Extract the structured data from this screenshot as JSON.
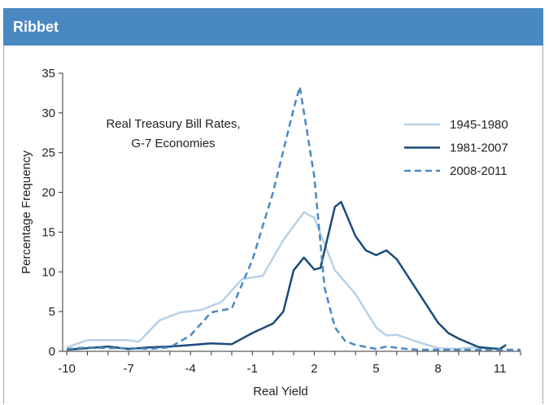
{
  "header": {
    "title": "Ribbet"
  },
  "chart_data": {
    "type": "line",
    "xlabel": "Real Yield",
    "ylabel": "Percentage Frequency",
    "annotation": [
      "Real Treasury Bill Rates,",
      "G-7 Economies"
    ],
    "xlim": [
      -10.2,
      12
    ],
    "ylim": [
      0,
      35
    ],
    "xticks": [
      -10,
      -7,
      -4,
      -1,
      2,
      5,
      8,
      11
    ],
    "yticks": [
      0,
      5,
      10,
      15,
      20,
      25,
      30,
      35
    ],
    "grid": false,
    "legend_position": "top-right",
    "series": [
      {
        "name": "1945-1980",
        "color": "#b8d0e6",
        "dash": "solid",
        "points": [
          [
            -10,
            0.5
          ],
          [
            -9,
            1.4
          ],
          [
            -8,
            1.4
          ],
          [
            -7,
            1.4
          ],
          [
            -6.5,
            1.2
          ],
          [
            -5.5,
            3.9
          ],
          [
            -4.5,
            4.9
          ],
          [
            -3.5,
            5.2
          ],
          [
            -2.5,
            6.2
          ],
          [
            -1.5,
            9.1
          ],
          [
            -0.5,
            9.5
          ],
          [
            0.5,
            14.0
          ],
          [
            1.5,
            17.5
          ],
          [
            2,
            16.8
          ],
          [
            3,
            10.2
          ],
          [
            4,
            7.2
          ],
          [
            5,
            3.0
          ],
          [
            5.5,
            2.0
          ],
          [
            6,
            2.1
          ],
          [
            7,
            1.2
          ],
          [
            8,
            0.4
          ],
          [
            9,
            0.3
          ],
          [
            10,
            0.6
          ],
          [
            10.5,
            0.4
          ]
        ]
      },
      {
        "name": "1981-2007",
        "color": "#1a4a7a",
        "dash": "solid",
        "points": [
          [
            -10,
            0.2
          ],
          [
            -9,
            0.4
          ],
          [
            -8,
            0.6
          ],
          [
            -7,
            0.3
          ],
          [
            -6,
            0.5
          ],
          [
            -5,
            0.6
          ],
          [
            -4,
            0.8
          ],
          [
            -3,
            1.0
          ],
          [
            -2,
            0.9
          ],
          [
            -1,
            2.3
          ],
          [
            0,
            3.5
          ],
          [
            0.5,
            5.0
          ],
          [
            1,
            10.2
          ],
          [
            1.5,
            11.8
          ],
          [
            2,
            10.3
          ],
          [
            2.3,
            10.5
          ],
          [
            3,
            18.2
          ],
          [
            3.3,
            18.8
          ],
          [
            4,
            14.5
          ],
          [
            4.5,
            12.7
          ],
          [
            5,
            12.1
          ],
          [
            5.5,
            12.7
          ],
          [
            6,
            11.6
          ],
          [
            7,
            7.6
          ],
          [
            8,
            3.6
          ],
          [
            8.5,
            2.3
          ],
          [
            9,
            1.6
          ],
          [
            10,
            0.5
          ],
          [
            11,
            0.3
          ],
          [
            11.3,
            0.8
          ]
        ]
      },
      {
        "name": "2008-2011",
        "color": "#4a88c2",
        "dash": "dashed",
        "points": [
          [
            -10,
            0.3
          ],
          [
            -9,
            0.5
          ],
          [
            -8,
            0.4
          ],
          [
            -7,
            0.4
          ],
          [
            -6,
            0.3
          ],
          [
            -5,
            0.5
          ],
          [
            -4,
            2.0
          ],
          [
            -3,
            4.9
          ],
          [
            -2,
            5.4
          ],
          [
            -1,
            11.5
          ],
          [
            0,
            20.0
          ],
          [
            1,
            30.5
          ],
          [
            1.3,
            33.3
          ],
          [
            2,
            22.0
          ],
          [
            2.5,
            8.0
          ],
          [
            3,
            3.0
          ],
          [
            3.5,
            1.3
          ],
          [
            4,
            0.8
          ],
          [
            5,
            0.3
          ],
          [
            5.5,
            0.6
          ],
          [
            6.5,
            0.3
          ],
          [
            7,
            0.2
          ],
          [
            8,
            0.2
          ],
          [
            9,
            0.2
          ],
          [
            10,
            0.2
          ],
          [
            11,
            0.2
          ],
          [
            12,
            0.2
          ]
        ]
      }
    ]
  }
}
